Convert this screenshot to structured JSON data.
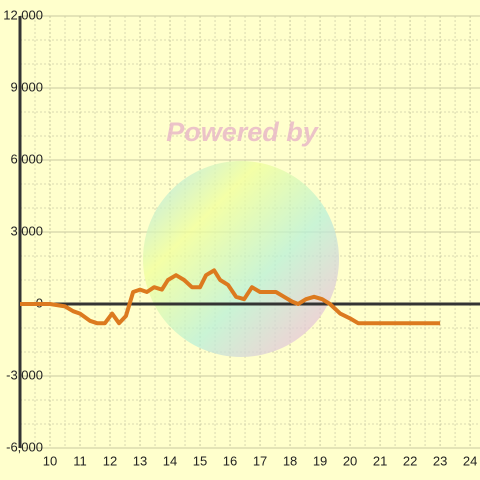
{
  "chart_data": {
    "type": "line",
    "watermark": "Powered by",
    "x": [
      9,
      10,
      10.5,
      10.77,
      11,
      11.33,
      11.57,
      11.83,
      12.07,
      12.3,
      12.53,
      12.77,
      13,
      13.23,
      13.47,
      13.73,
      13.93,
      14.2,
      14.47,
      14.73,
      15,
      15.2,
      15.47,
      15.67,
      15.93,
      16.2,
      16.47,
      16.73,
      17,
      17.33,
      17.53,
      17.8,
      18.07,
      18.27,
      18.53,
      18.8,
      19.07,
      19.33,
      19.67,
      20,
      20.27,
      23
    ],
    "series": [
      {
        "color": "#dc7a1f",
        "values": [
          0,
          0,
          -100,
          -300,
          -400,
          -700,
          -800,
          -800,
          -400,
          -800,
          -500,
          500,
          600,
          500,
          700,
          600,
          1000,
          1200,
          1000,
          700,
          700,
          1200,
          1400,
          1000,
          800,
          300,
          200,
          700,
          500,
          500,
          500,
          300,
          100,
          0,
          200,
          300,
          200,
          0,
          -400,
          -600,
          -800,
          -800
        ]
      }
    ],
    "xlim": [
      9,
      24.33
    ],
    "ylim": [
      -6000,
      12000
    ],
    "xticks": [
      10,
      11,
      12,
      13,
      14,
      15,
      16,
      17,
      18,
      19,
      20,
      21,
      22,
      23,
      24
    ],
    "xticks_minor": [
      9.5,
      10.5,
      11.5,
      12.5,
      13.5,
      14.5,
      15.5,
      16.5,
      17.5,
      18.5,
      19.5,
      20.5,
      21.5,
      22.5,
      23.5
    ],
    "yticks": [
      {
        "value": -6000,
        "label": "-6,000"
      },
      {
        "value": -3000,
        "label": "-3,000"
      },
      0,
      {
        "value": 3000,
        "label": "3,000"
      },
      {
        "value": 6000,
        "label": "6,000"
      },
      {
        "value": 9000,
        "label": "9,000"
      },
      {
        "value": 12000,
        "label": "12,000"
      }
    ],
    "yticks_minor": [
      -5000,
      -4000,
      -2000,
      -1000,
      1000,
      2000,
      4000,
      5000,
      7000,
      8000,
      10000,
      11000
    ],
    "grid": true
  }
}
